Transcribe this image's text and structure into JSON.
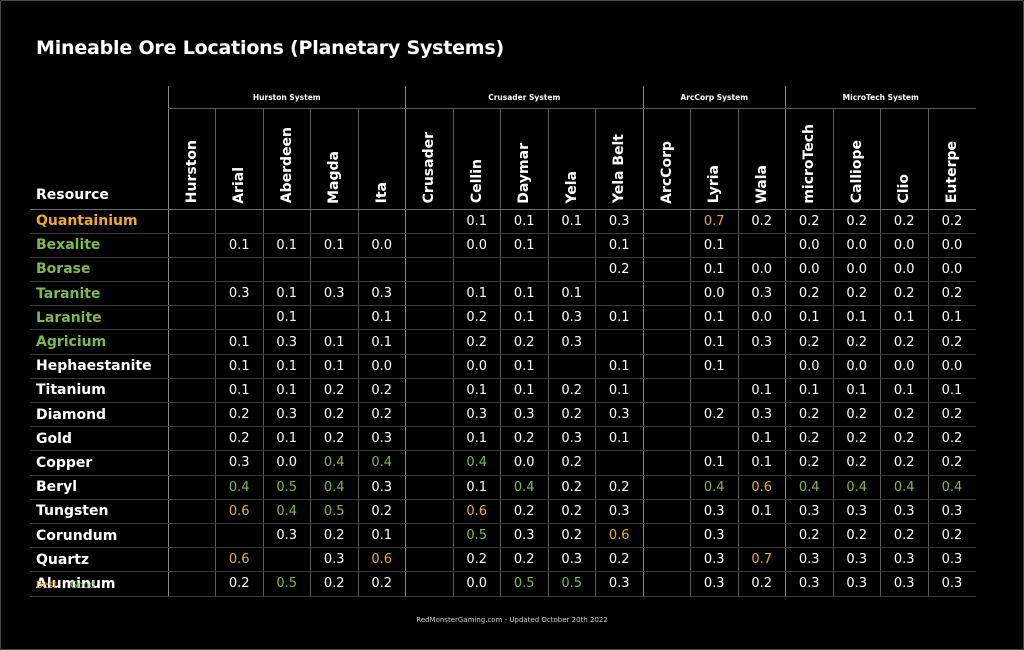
{
  "title": "Mineable Ore Locations (Planetary Systems)",
  "colors": {
    "best": "#f0a92a",
    "good": "#7dba4c",
    "normal": "#ffffff",
    "background": "#000000"
  },
  "header_label": "Resource",
  "systems": [
    {
      "name": "Hurston System",
      "span": 5
    },
    {
      "name": "Crusader System",
      "span": 5
    },
    {
      "name": "ArcCorp System",
      "span": 3
    },
    {
      "name": "MicroTech System",
      "span": 4
    }
  ],
  "columns": [
    "Hurston",
    "Arial",
    "Aberdeen",
    "Magda",
    "Ita",
    "Crusader",
    "Cellin",
    "Daymar",
    "Yela",
    "Yela Belt",
    "ArcCorp",
    "Lyria",
    "Wala",
    "microTech",
    "Calliope",
    "Clio",
    "Euterpe"
  ],
  "rows": [
    {
      "name": "Quantainium",
      "tier": "best",
      "cells": [
        {
          "v": ""
        },
        {
          "v": ""
        },
        {
          "v": ""
        },
        {
          "v": ""
        },
        {
          "v": ""
        },
        {
          "v": ""
        },
        {
          "v": "0.1"
        },
        {
          "v": "0.1"
        },
        {
          "v": "0.1"
        },
        {
          "v": "0.3"
        },
        {
          "v": ""
        },
        {
          "v": "0.7",
          "t": "best"
        },
        {
          "v": "0.2"
        },
        {
          "v": "0.2"
        },
        {
          "v": "0.2"
        },
        {
          "v": "0.2"
        },
        {
          "v": "0.2"
        }
      ]
    },
    {
      "name": "Bexalite",
      "tier": "good",
      "cells": [
        {
          "v": ""
        },
        {
          "v": "0.1"
        },
        {
          "v": "0.1"
        },
        {
          "v": "0.1"
        },
        {
          "v": "0.0"
        },
        {
          "v": ""
        },
        {
          "v": "0.0"
        },
        {
          "v": "0.1"
        },
        {
          "v": ""
        },
        {
          "v": "0.1"
        },
        {
          "v": ""
        },
        {
          "v": "0.1"
        },
        {
          "v": ""
        },
        {
          "v": "0.0"
        },
        {
          "v": "0.0"
        },
        {
          "v": "0.0"
        },
        {
          "v": "0.0"
        }
      ]
    },
    {
      "name": "Borase",
      "tier": "good",
      "cells": [
        {
          "v": ""
        },
        {
          "v": ""
        },
        {
          "v": ""
        },
        {
          "v": ""
        },
        {
          "v": ""
        },
        {
          "v": ""
        },
        {
          "v": ""
        },
        {
          "v": ""
        },
        {
          "v": ""
        },
        {
          "v": "0.2"
        },
        {
          "v": ""
        },
        {
          "v": "0.1"
        },
        {
          "v": "0.0"
        },
        {
          "v": "0.0"
        },
        {
          "v": "0.0"
        },
        {
          "v": "0.0"
        },
        {
          "v": "0.0"
        }
      ]
    },
    {
      "name": "Taranite",
      "tier": "good",
      "cells": [
        {
          "v": ""
        },
        {
          "v": "0.3"
        },
        {
          "v": "0.1"
        },
        {
          "v": "0.3"
        },
        {
          "v": "0.3"
        },
        {
          "v": ""
        },
        {
          "v": "0.1"
        },
        {
          "v": "0.1"
        },
        {
          "v": "0.1"
        },
        {
          "v": ""
        },
        {
          "v": ""
        },
        {
          "v": "0.0"
        },
        {
          "v": "0.3"
        },
        {
          "v": "0.2"
        },
        {
          "v": "0.2"
        },
        {
          "v": "0.2"
        },
        {
          "v": "0.2"
        }
      ]
    },
    {
      "name": "Laranite",
      "tier": "good",
      "cells": [
        {
          "v": ""
        },
        {
          "v": ""
        },
        {
          "v": "0.1"
        },
        {
          "v": ""
        },
        {
          "v": "0.1"
        },
        {
          "v": ""
        },
        {
          "v": "0.2"
        },
        {
          "v": "0.1"
        },
        {
          "v": "0.3"
        },
        {
          "v": "0.1"
        },
        {
          "v": ""
        },
        {
          "v": "0.1"
        },
        {
          "v": "0.0"
        },
        {
          "v": "0.1"
        },
        {
          "v": "0.1"
        },
        {
          "v": "0.1"
        },
        {
          "v": "0.1"
        }
      ]
    },
    {
      "name": "Agricium",
      "tier": "good",
      "cells": [
        {
          "v": ""
        },
        {
          "v": "0.1"
        },
        {
          "v": "0.3"
        },
        {
          "v": "0.1"
        },
        {
          "v": "0.1"
        },
        {
          "v": ""
        },
        {
          "v": "0.2"
        },
        {
          "v": "0.2"
        },
        {
          "v": "0.3"
        },
        {
          "v": ""
        },
        {
          "v": ""
        },
        {
          "v": "0.1"
        },
        {
          "v": "0.3"
        },
        {
          "v": "0.2"
        },
        {
          "v": "0.2"
        },
        {
          "v": "0.2"
        },
        {
          "v": "0.2"
        }
      ]
    },
    {
      "name": "Hephaestanite",
      "tier": "normal",
      "cells": [
        {
          "v": ""
        },
        {
          "v": "0.1"
        },
        {
          "v": "0.1"
        },
        {
          "v": "0.1"
        },
        {
          "v": "0.0"
        },
        {
          "v": ""
        },
        {
          "v": "0.0"
        },
        {
          "v": "0.1"
        },
        {
          "v": ""
        },
        {
          "v": "0.1"
        },
        {
          "v": ""
        },
        {
          "v": "0.1"
        },
        {
          "v": ""
        },
        {
          "v": "0.0"
        },
        {
          "v": "0.0"
        },
        {
          "v": "0.0"
        },
        {
          "v": "0.0"
        }
      ]
    },
    {
      "name": "Titanium",
      "tier": "normal",
      "cells": [
        {
          "v": ""
        },
        {
          "v": "0.1"
        },
        {
          "v": "0.1"
        },
        {
          "v": "0.2"
        },
        {
          "v": "0.2"
        },
        {
          "v": ""
        },
        {
          "v": "0.1"
        },
        {
          "v": "0.1"
        },
        {
          "v": "0.2"
        },
        {
          "v": "0.1"
        },
        {
          "v": ""
        },
        {
          "v": ""
        },
        {
          "v": "0.1"
        },
        {
          "v": "0.1"
        },
        {
          "v": "0.1"
        },
        {
          "v": "0.1"
        },
        {
          "v": "0.1"
        }
      ]
    },
    {
      "name": "Diamond",
      "tier": "normal",
      "cells": [
        {
          "v": ""
        },
        {
          "v": "0.2"
        },
        {
          "v": "0.3"
        },
        {
          "v": "0.2"
        },
        {
          "v": "0.2"
        },
        {
          "v": ""
        },
        {
          "v": "0.3"
        },
        {
          "v": "0.3"
        },
        {
          "v": "0.2"
        },
        {
          "v": "0.3"
        },
        {
          "v": ""
        },
        {
          "v": "0.2"
        },
        {
          "v": "0.3"
        },
        {
          "v": "0.2"
        },
        {
          "v": "0.2"
        },
        {
          "v": "0.2"
        },
        {
          "v": "0.2"
        }
      ]
    },
    {
      "name": "Gold",
      "tier": "normal",
      "cells": [
        {
          "v": ""
        },
        {
          "v": "0.2"
        },
        {
          "v": "0.1"
        },
        {
          "v": "0.2"
        },
        {
          "v": "0.3"
        },
        {
          "v": ""
        },
        {
          "v": "0.1"
        },
        {
          "v": "0.2"
        },
        {
          "v": "0.3"
        },
        {
          "v": "0.1"
        },
        {
          "v": ""
        },
        {
          "v": ""
        },
        {
          "v": "0.1"
        },
        {
          "v": "0.2"
        },
        {
          "v": "0.2"
        },
        {
          "v": "0.2"
        },
        {
          "v": "0.2"
        }
      ]
    },
    {
      "name": "Copper",
      "tier": "normal",
      "cells": [
        {
          "v": ""
        },
        {
          "v": "0.3"
        },
        {
          "v": "0.0"
        },
        {
          "v": "0.4",
          "t": "good"
        },
        {
          "v": "0.4",
          "t": "good"
        },
        {
          "v": ""
        },
        {
          "v": "0.4",
          "t": "good"
        },
        {
          "v": "0.0"
        },
        {
          "v": "0.2"
        },
        {
          "v": ""
        },
        {
          "v": ""
        },
        {
          "v": "0.1"
        },
        {
          "v": "0.1"
        },
        {
          "v": "0.2"
        },
        {
          "v": "0.2"
        },
        {
          "v": "0.2"
        },
        {
          "v": "0.2"
        }
      ]
    },
    {
      "name": "Beryl",
      "tier": "normal",
      "cells": [
        {
          "v": ""
        },
        {
          "v": "0.4",
          "t": "good"
        },
        {
          "v": "0.5",
          "t": "good"
        },
        {
          "v": "0.4",
          "t": "good"
        },
        {
          "v": "0.3"
        },
        {
          "v": ""
        },
        {
          "v": "0.1"
        },
        {
          "v": "0.4",
          "t": "good"
        },
        {
          "v": "0.2"
        },
        {
          "v": "0.2"
        },
        {
          "v": ""
        },
        {
          "v": "0.4",
          "t": "good"
        },
        {
          "v": "0.6",
          "t": "best"
        },
        {
          "v": "0.4",
          "t": "good"
        },
        {
          "v": "0.4",
          "t": "good"
        },
        {
          "v": "0.4",
          "t": "good"
        },
        {
          "v": "0.4",
          "t": "good"
        }
      ]
    },
    {
      "name": "Tungsten",
      "tier": "normal",
      "cells": [
        {
          "v": ""
        },
        {
          "v": "0.6",
          "t": "best"
        },
        {
          "v": "0.4",
          "t": "good"
        },
        {
          "v": "0.5",
          "t": "good"
        },
        {
          "v": "0.2"
        },
        {
          "v": ""
        },
        {
          "v": "0.6",
          "t": "best"
        },
        {
          "v": "0.2"
        },
        {
          "v": "0.2"
        },
        {
          "v": "0.3"
        },
        {
          "v": ""
        },
        {
          "v": "0.3"
        },
        {
          "v": "0.1"
        },
        {
          "v": "0.3"
        },
        {
          "v": "0.3"
        },
        {
          "v": "0.3"
        },
        {
          "v": "0.3"
        }
      ]
    },
    {
      "name": "Corundum",
      "tier": "normal",
      "cells": [
        {
          "v": ""
        },
        {
          "v": ""
        },
        {
          "v": "0.3"
        },
        {
          "v": "0.2"
        },
        {
          "v": "0.1"
        },
        {
          "v": ""
        },
        {
          "v": "0.5",
          "t": "good"
        },
        {
          "v": "0.3"
        },
        {
          "v": "0.2"
        },
        {
          "v": "0.6",
          "t": "best"
        },
        {
          "v": ""
        },
        {
          "v": "0.3"
        },
        {
          "v": ""
        },
        {
          "v": "0.2"
        },
        {
          "v": "0.2"
        },
        {
          "v": "0.2"
        },
        {
          "v": "0.2"
        }
      ]
    },
    {
      "name": "Quartz",
      "tier": "normal",
      "cells": [
        {
          "v": ""
        },
        {
          "v": "0.6",
          "t": "best"
        },
        {
          "v": ""
        },
        {
          "v": "0.3"
        },
        {
          "v": "0.6",
          "t": "best"
        },
        {
          "v": ""
        },
        {
          "v": "0.2"
        },
        {
          "v": "0.2"
        },
        {
          "v": "0.3"
        },
        {
          "v": "0.2"
        },
        {
          "v": ""
        },
        {
          "v": "0.3"
        },
        {
          "v": "0.7",
          "t": "best"
        },
        {
          "v": "0.3"
        },
        {
          "v": "0.3"
        },
        {
          "v": "0.3"
        },
        {
          "v": "0.3"
        }
      ]
    },
    {
      "name": "Aluminum",
      "tier": "normal",
      "cells": [
        {
          "v": ""
        },
        {
          "v": "0.2"
        },
        {
          "v": "0.5",
          "t": "good"
        },
        {
          "v": "0.2"
        },
        {
          "v": "0.2"
        },
        {
          "v": ""
        },
        {
          "v": "0.0"
        },
        {
          "v": "0.5",
          "t": "good"
        },
        {
          "v": "0.5",
          "t": "good"
        },
        {
          "v": "0.3"
        },
        {
          "v": ""
        },
        {
          "v": "0.3"
        },
        {
          "v": "0.2"
        },
        {
          "v": "0.3"
        },
        {
          "v": "0.3"
        },
        {
          "v": "0.3"
        },
        {
          "v": "0.3"
        }
      ]
    }
  ],
  "legend": {
    "best": "Best",
    "good": "Good"
  },
  "footer": "RedMonsterGaming.com - Updated October 20th 2022"
}
